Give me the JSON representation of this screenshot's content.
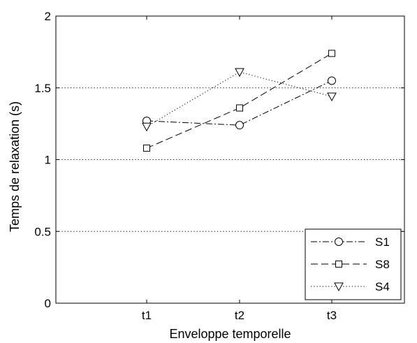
{
  "chart_data": {
    "type": "line",
    "title": "",
    "xlabel": "Enveloppe temporelle",
    "ylabel": "Temps de relaxation (s)",
    "categories": [
      "t1",
      "t2",
      "t3"
    ],
    "ylim": [
      0,
      2
    ],
    "yticks": [
      "0",
      "0.5",
      "1",
      "1.5",
      "2"
    ],
    "grid": "horizontal dotted lines at 0.5, 1, 1.5",
    "legend_position": "bottom-right",
    "series": [
      {
        "name": "S1",
        "values": [
          1.27,
          1.24,
          1.55
        ],
        "line_style": "dash-dot",
        "marker": "circle",
        "color": "#000000"
      },
      {
        "name": "S8",
        "values": [
          1.08,
          1.36,
          1.74
        ],
        "line_style": "dashed",
        "marker": "square",
        "color": "#000000"
      },
      {
        "name": "S4",
        "values": [
          1.23,
          1.61,
          1.44
        ],
        "line_style": "dotted",
        "marker": "triangle-down",
        "color": "#000000"
      }
    ]
  }
}
